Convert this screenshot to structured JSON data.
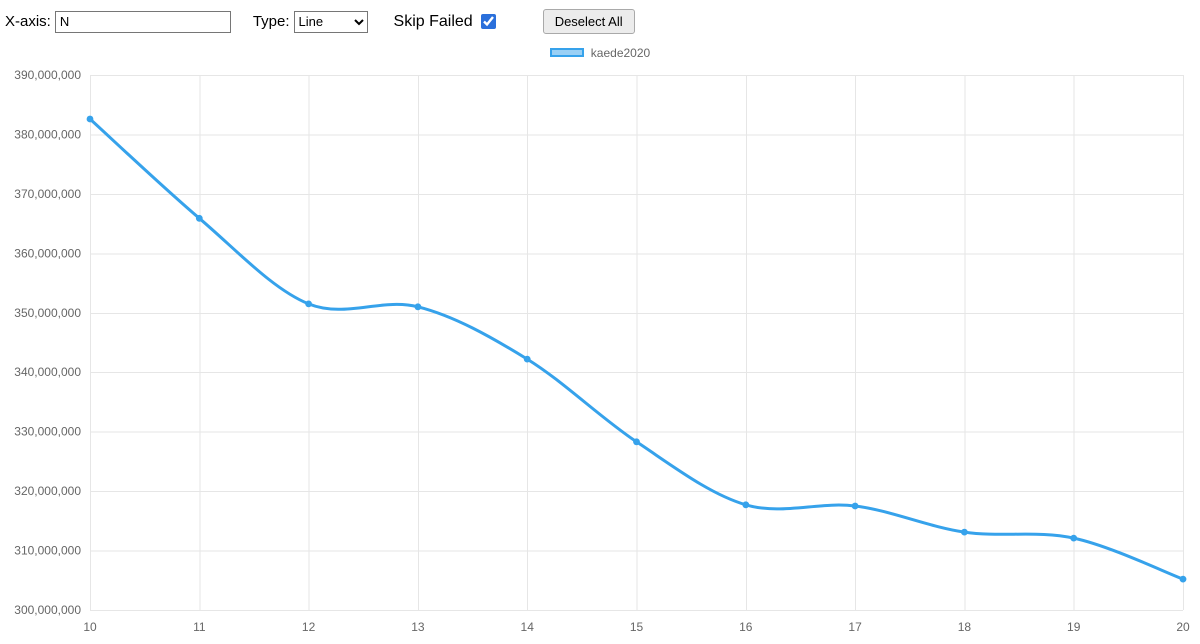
{
  "controls": {
    "xaxis_label": "X-axis:",
    "xaxis_value": "N",
    "type_label": "Type:",
    "type_value": "Line",
    "skip_failed_label": "Skip Failed",
    "skip_failed_checked": true,
    "deselect_all_label": "Deselect All"
  },
  "legend": {
    "label": "kaede2020",
    "swatch_fill": "#9ad0f5",
    "swatch_border": "#36a2eb"
  },
  "chart_data": {
    "type": "line",
    "title": "",
    "x": [
      10,
      11,
      12,
      13,
      14,
      15,
      16,
      17,
      18,
      19,
      20
    ],
    "series": [
      {
        "name": "kaede2020",
        "values": [
          382600000,
          365900000,
          351500000,
          351000000,
          342200000,
          328300000,
          317700000,
          317500000,
          313100000,
          312100000,
          305200000
        ]
      }
    ],
    "xlabel": "N",
    "ylabel": "",
    "ylim": [
      300000000,
      390000000
    ],
    "ytick_step": 10000000,
    "grid": true,
    "legend_position": "top",
    "line_color": "#36a2eb",
    "point_color": "#36a2eb",
    "grid_color": "#e6e6e6",
    "tick_color": "#666666"
  }
}
